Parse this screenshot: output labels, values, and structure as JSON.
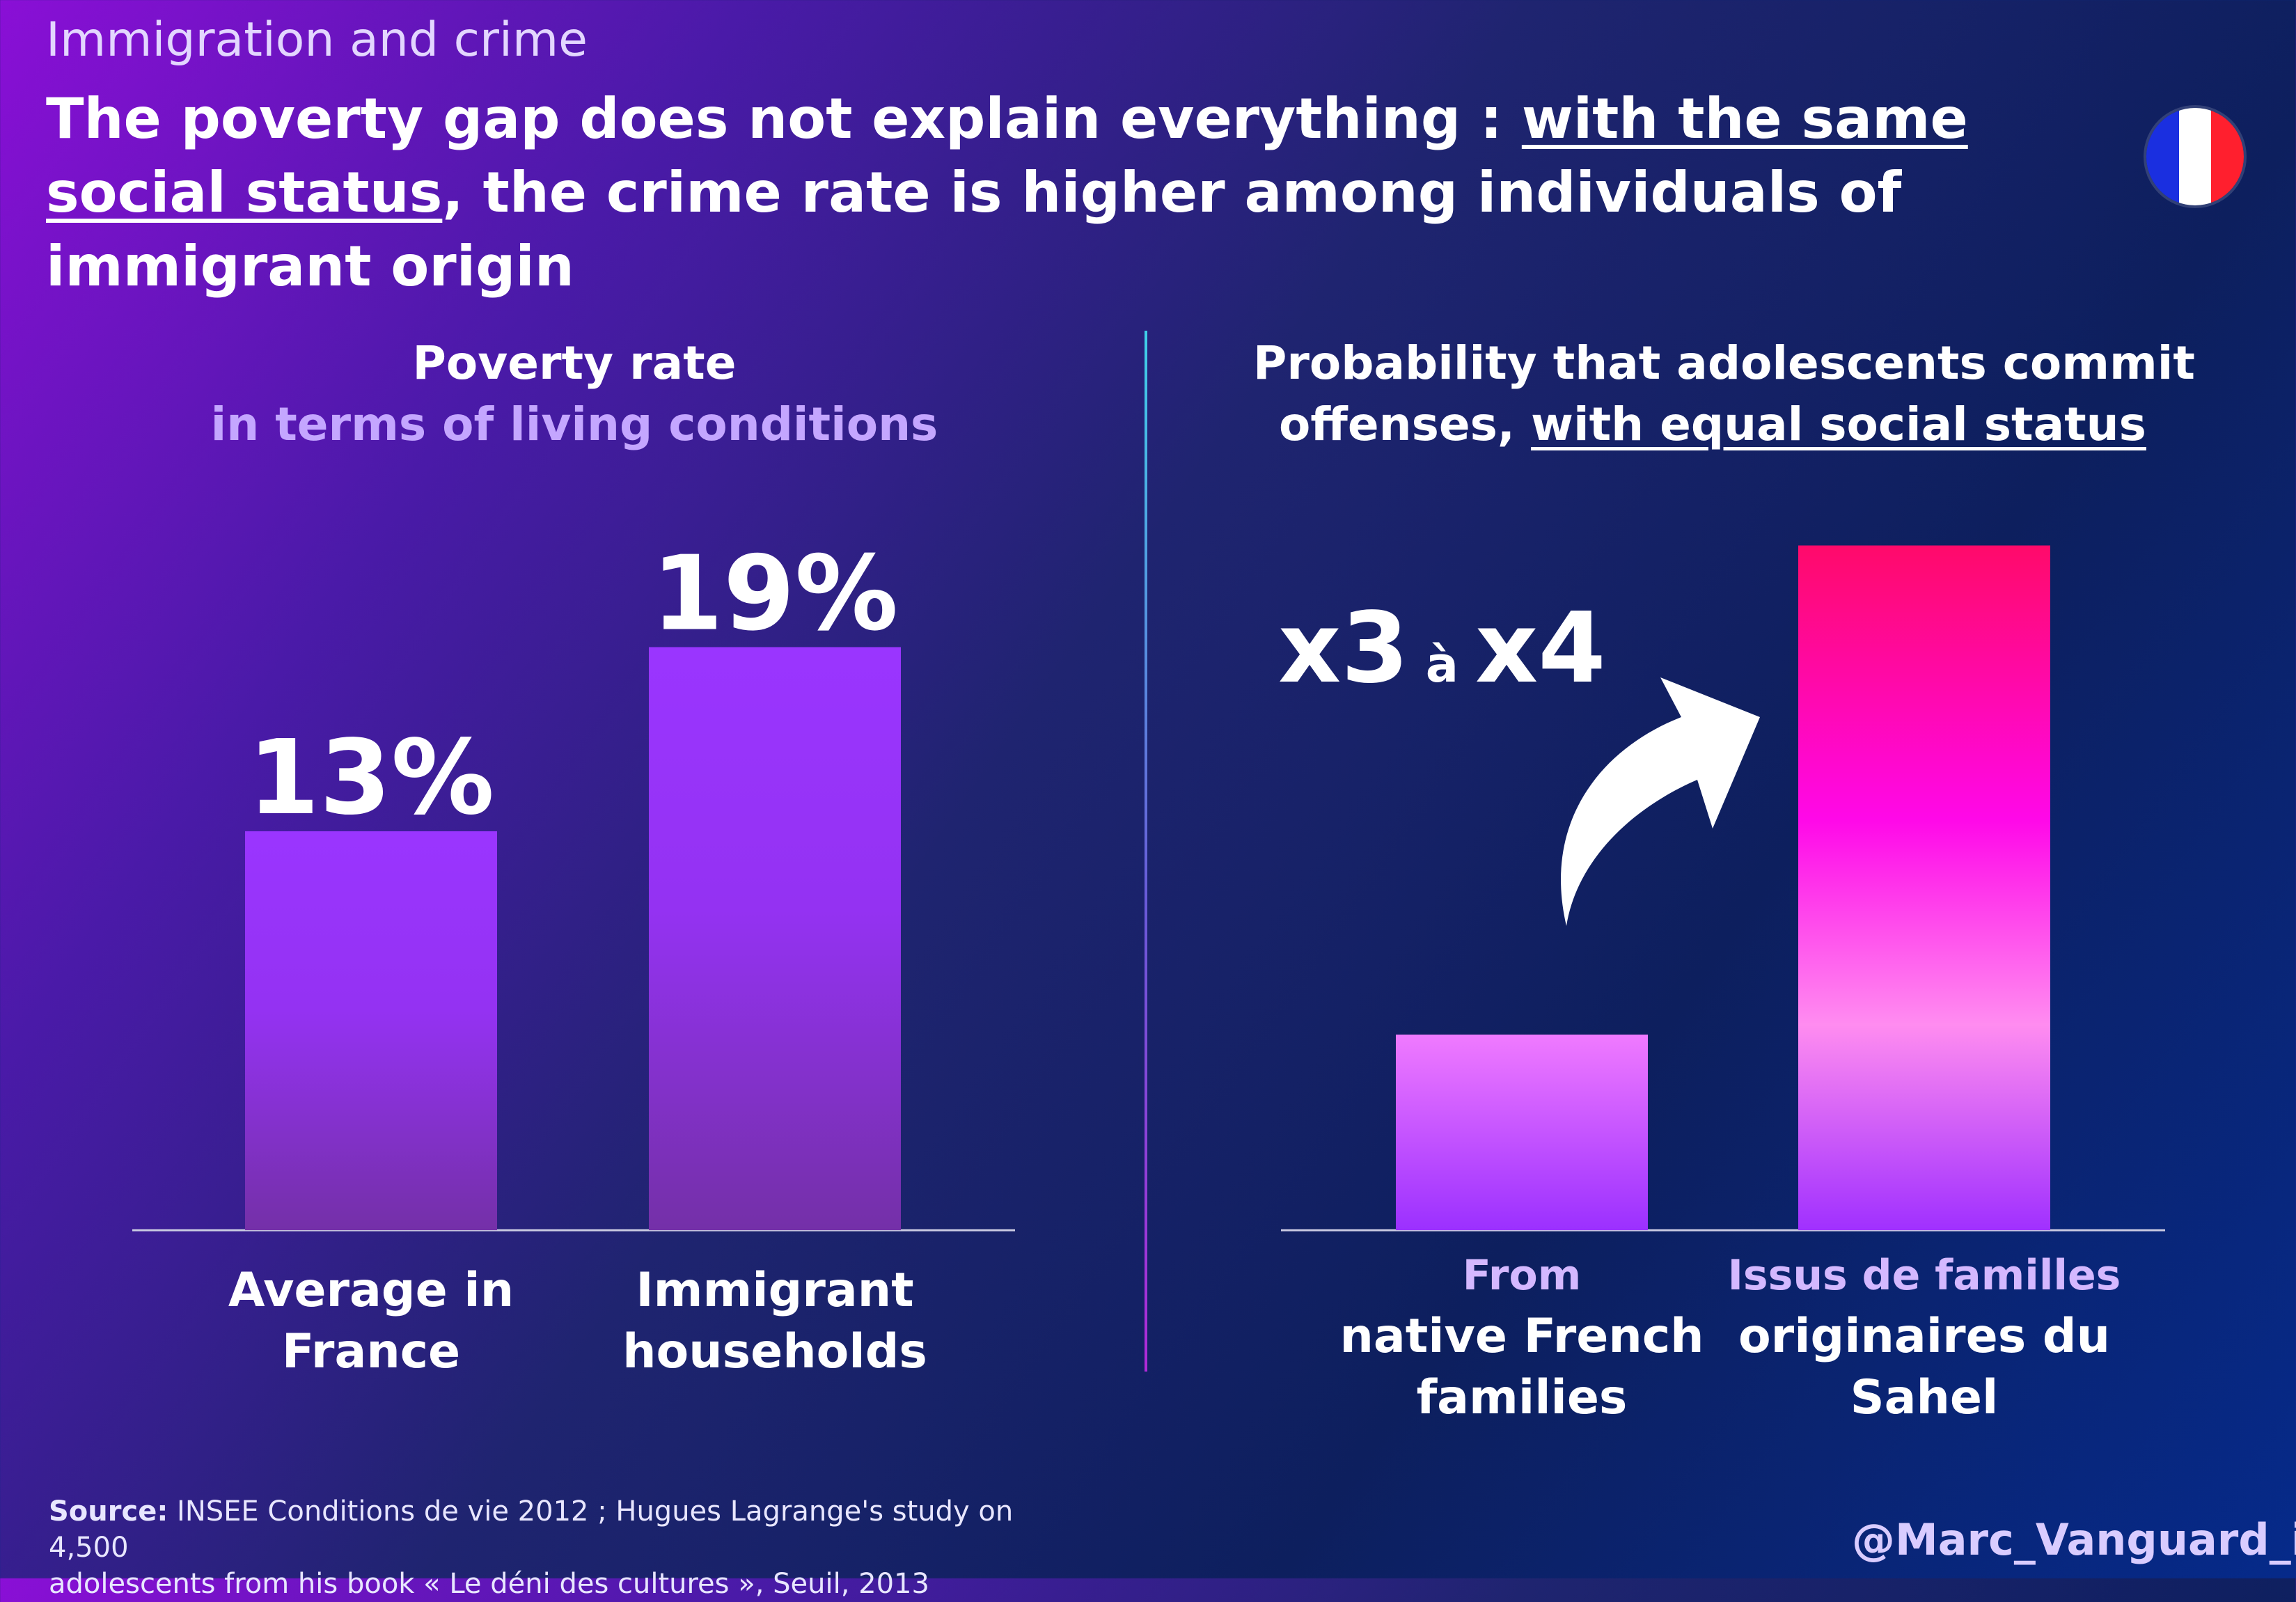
{
  "kicker": "Immigration and crime",
  "headline": {
    "part1": "The poverty gap does not explain everything : ",
    "underlined1": "with the same social status",
    "part2": ", the crime rate is higher among individuals of immigrant origin"
  },
  "flag": {
    "colors": [
      "#1a2fe0",
      "#ffffff",
      "#ff1f2e"
    ],
    "icon": "france-flag-icon"
  },
  "left_panel": {
    "title": "Poverty rate",
    "subtitle": "in terms of living conditions"
  },
  "right_panel": {
    "title_line1": "Probability that adolescents commit",
    "title_line2_plain": "offenses, ",
    "title_line2_underlined": "with equal social status",
    "multiplier": {
      "a": "x3",
      "sep": "à",
      "b": "x4"
    },
    "arrow_icon": "curved-arrow-icon"
  },
  "chart_data": [
    {
      "type": "bar",
      "title": "Poverty rate in terms of living conditions",
      "categories": [
        "Average in France",
        "Immigrant households"
      ],
      "category_lines": [
        [
          "Average in",
          "France"
        ],
        [
          "Immigrant",
          "households"
        ]
      ],
      "values": [
        13,
        19
      ],
      "value_labels": [
        "13%",
        "19%"
      ],
      "unit": "%",
      "ylim": [
        0,
        25
      ],
      "colors": [
        "#9a35ff",
        "#9a35ff"
      ]
    },
    {
      "type": "bar",
      "title": "Probability that adolescents commit offenses, with equal social status",
      "categories": [
        "From native French families",
        "Issus de familles originaires du Sahel"
      ],
      "category_lines": [
        [
          "From",
          "native French",
          "families"
        ],
        [
          "Issus de familles",
          "originaires du",
          "Sahel"
        ]
      ],
      "values": [
        1,
        3.5
      ],
      "ylim": [
        0,
        4
      ],
      "colors": [
        "#f07aff",
        "#ff0a6a"
      ]
    }
  ],
  "source": {
    "label": "Source:",
    "text_line1": "INSEE Conditions de vie 2012 ; Hugues Lagrange's study on 4,500",
    "text_line2": "adolescents from his book « Le déni des cultures », Seuil, 2013"
  },
  "handle": "@Marc_Vanguard_i"
}
